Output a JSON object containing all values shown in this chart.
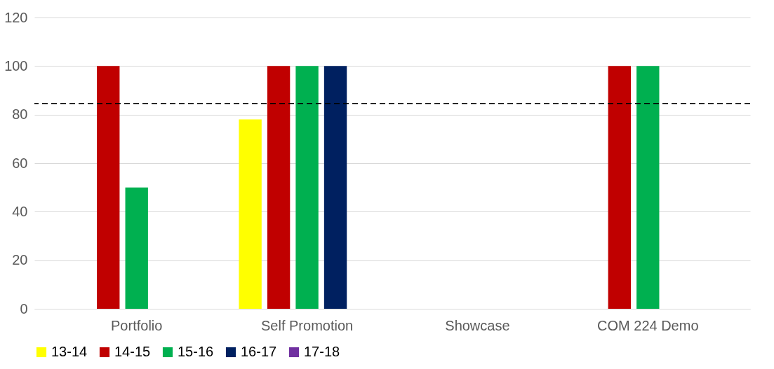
{
  "chart_data": {
    "type": "bar",
    "categories": [
      "Portfolio",
      "Self Promotion",
      "Showcase",
      "COM 224 Demo"
    ],
    "series": [
      {
        "name": "13-14",
        "color": "#ffff00",
        "values": [
          null,
          78,
          null,
          null
        ]
      },
      {
        "name": "14-15",
        "color": "#c00000",
        "values": [
          100,
          100,
          null,
          100
        ]
      },
      {
        "name": "15-16",
        "color": "#00b050",
        "values": [
          50,
          100,
          null,
          100
        ]
      },
      {
        "name": "16-17",
        "color": "#002060",
        "values": [
          null,
          100,
          null,
          null
        ]
      },
      {
        "name": "17-18",
        "color": "#7030a0",
        "values": [
          null,
          null,
          null,
          null
        ]
      }
    ],
    "ylim": [
      0,
      120
    ],
    "yticks": [
      0,
      20,
      40,
      60,
      80,
      100,
      120
    ],
    "grid": "y",
    "legend": "bottom",
    "ref_lines": [
      {
        "axis": "y",
        "value": 84.6,
        "color": "#000000",
        "line_style": "dashed"
      }
    ]
  }
}
